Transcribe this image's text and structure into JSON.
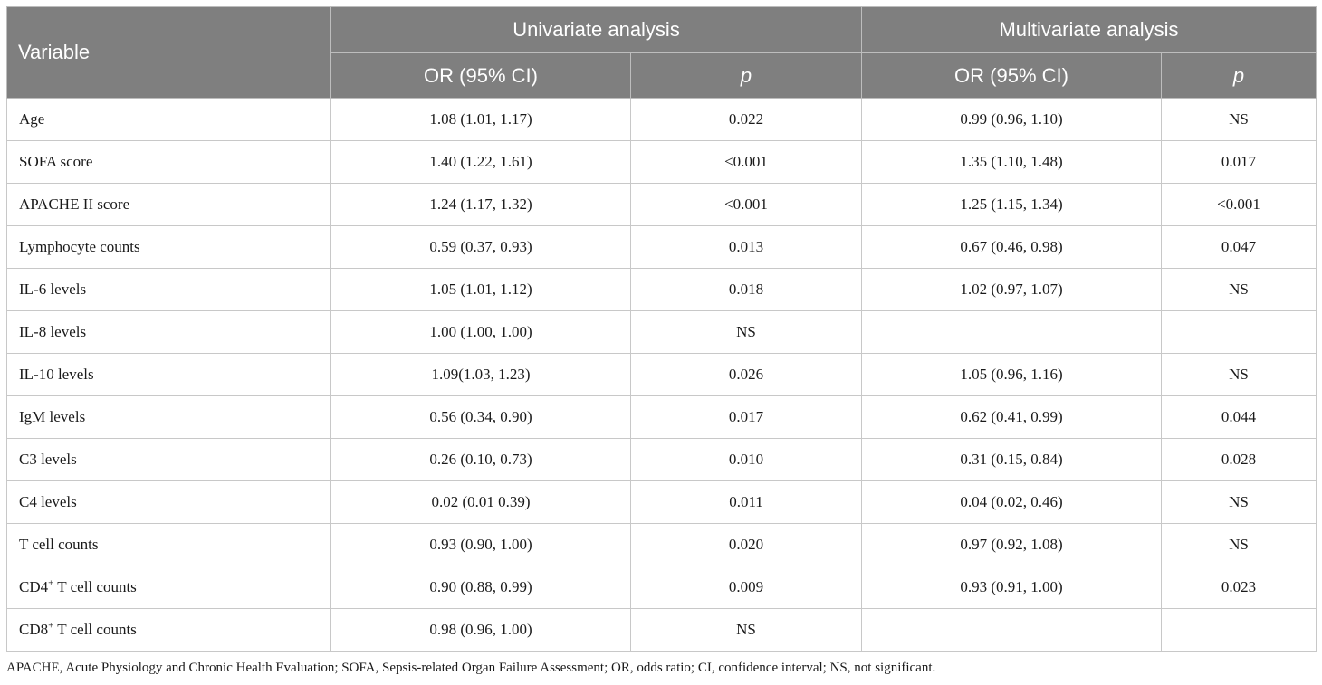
{
  "table": {
    "header": {
      "variable": "Variable",
      "univariate": "Univariate analysis",
      "multivariate": "Multivariate analysis",
      "or_ci": "OR (95% CI)",
      "p": "p"
    },
    "rows": [
      {
        "variable": "Age",
        "sup": "",
        "variable_suffix": "",
        "uni_or": "1.08 (1.01, 1.17)",
        "uni_p": "0.022",
        "multi_or": "0.99 (0.96, 1.10)",
        "multi_p": "NS"
      },
      {
        "variable": "SOFA score",
        "sup": "",
        "variable_suffix": "",
        "uni_or": "1.40 (1.22, 1.61)",
        "uni_p": "<0.001",
        "multi_or": "1.35 (1.10, 1.48)",
        "multi_p": "0.017"
      },
      {
        "variable": "APACHE II score",
        "sup": "",
        "variable_suffix": "",
        "uni_or": "1.24 (1.17, 1.32)",
        "uni_p": "<0.001",
        "multi_or": "1.25 (1.15, 1.34)",
        "multi_p": "<0.001"
      },
      {
        "variable": "Lymphocyte counts",
        "sup": "",
        "variable_suffix": "",
        "uni_or": "0.59 (0.37, 0.93)",
        "uni_p": "0.013",
        "multi_or": "0.67 (0.46, 0.98)",
        "multi_p": "0.047"
      },
      {
        "variable": "IL-6 levels",
        "sup": "",
        "variable_suffix": "",
        "uni_or": "1.05 (1.01, 1.12)",
        "uni_p": "0.018",
        "multi_or": "1.02 (0.97, 1.07)",
        "multi_p": "NS"
      },
      {
        "variable": "IL-8 levels",
        "sup": "",
        "variable_suffix": "",
        "uni_or": "1.00 (1.00, 1.00)",
        "uni_p": "NS",
        "multi_or": "",
        "multi_p": ""
      },
      {
        "variable": "IL-10 levels",
        "sup": "",
        "variable_suffix": "",
        "uni_or": "1.09(1.03, 1.23)",
        "uni_p": "0.026",
        "multi_or": "1.05 (0.96, 1.16)",
        "multi_p": "NS"
      },
      {
        "variable": "IgM levels",
        "sup": "",
        "variable_suffix": "",
        "uni_or": "0.56 (0.34, 0.90)",
        "uni_p": "0.017",
        "multi_or": "0.62 (0.41, 0.99)",
        "multi_p": "0.044"
      },
      {
        "variable": "C3 levels",
        "sup": "",
        "variable_suffix": "",
        "uni_or": "0.26 (0.10, 0.73)",
        "uni_p": "0.010",
        "multi_or": "0.31 (0.15, 0.84)",
        "multi_p": "0.028"
      },
      {
        "variable": "C4 levels",
        "sup": "",
        "variable_suffix": "",
        "uni_or": "0.02 (0.01 0.39)",
        "uni_p": "0.011",
        "multi_or": "0.04 (0.02, 0.46)",
        "multi_p": "NS"
      },
      {
        "variable": "T cell counts",
        "sup": "",
        "variable_suffix": "",
        "uni_or": "0.93 (0.90, 1.00)",
        "uni_p": "0.020",
        "multi_or": "0.97 (0.92, 1.08)",
        "multi_p": "NS"
      },
      {
        "variable": "CD4",
        "sup": "+",
        "variable_suffix": " T cell counts",
        "uni_or": "0.90 (0.88, 0.99)",
        "uni_p": "0.009",
        "multi_or": "0.93 (0.91, 1.00)",
        "multi_p": "0.023"
      },
      {
        "variable": "CD8",
        "sup": "+",
        "variable_suffix": " T cell counts",
        "uni_or": "0.98 (0.96, 1.00)",
        "uni_p": "NS",
        "multi_or": "",
        "multi_p": ""
      }
    ]
  },
  "footnote": "APACHE, Acute Physiology and Chronic Health Evaluation; SOFA, Sepsis-related Organ Failure Assessment; OR, odds ratio; CI, confidence interval; NS, not significant.",
  "colors": {
    "header_bg": "#7f7f7f",
    "header_text": "#ffffff",
    "grid": "#c8c8c8"
  }
}
